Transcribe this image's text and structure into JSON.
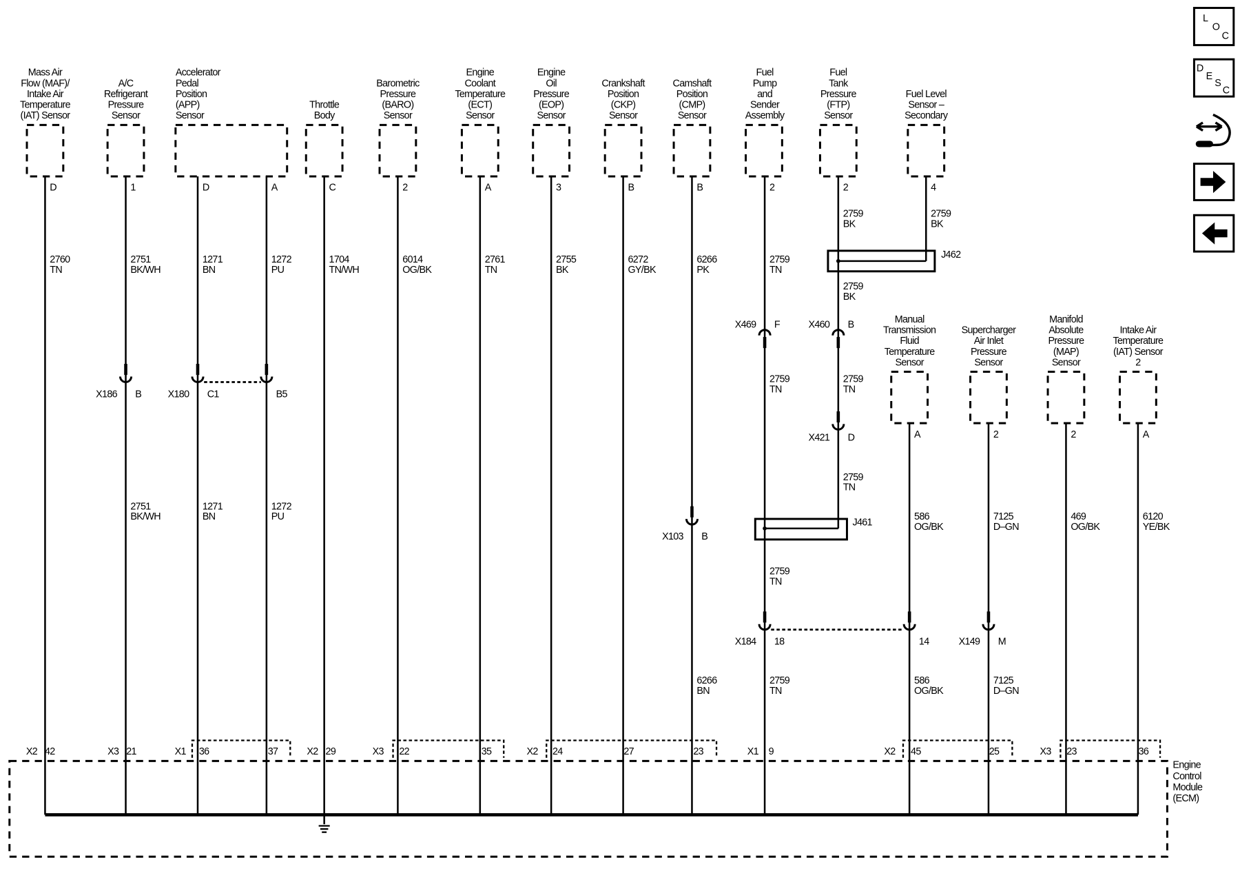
{
  "components": [
    {
      "label": [
        "Mass Air",
        "Flow (MAF)/",
        "Intake Air",
        "Temperature",
        "(IAT) Sensor"
      ],
      "pins": [
        "D"
      ]
    },
    {
      "label": [
        "A/C",
        "Refrigerant",
        "Pressure",
        "Sensor"
      ],
      "pins": [
        "1"
      ]
    },
    {
      "label": [
        "Accelerator",
        "Pedal",
        "Position",
        "(APP)",
        "Sensor"
      ],
      "pins": [
        "D",
        "A"
      ]
    },
    {
      "label": [
        "Throttle",
        "Body"
      ],
      "pins": [
        "C"
      ]
    },
    {
      "label": [
        "Barometric",
        "Pressure",
        "(BARO)",
        "Sensor"
      ],
      "pins": [
        "2"
      ]
    },
    {
      "label": [
        "Engine",
        "Coolant",
        "Temperature",
        "(ECT)",
        "Sensor"
      ],
      "pins": [
        "A"
      ]
    },
    {
      "label": [
        "Engine",
        "Oil",
        "Pressure",
        "(EOP)",
        "Sensor"
      ],
      "pins": [
        "3"
      ]
    },
    {
      "label": [
        "Crankshaft",
        "Position",
        "(CKP)",
        "Sensor"
      ],
      "pins": [
        "B"
      ]
    },
    {
      "label": [
        "Camshaft",
        "Position",
        "(CMP)",
        "Sensor"
      ],
      "pins": [
        "B"
      ]
    },
    {
      "label": [
        "Fuel",
        "Pump",
        "and",
        "Sender",
        "Assembly"
      ],
      "pins": [
        "2"
      ]
    },
    {
      "label": [
        "Fuel",
        "Tank",
        "Pressure",
        "(FTP)",
        "Sensor"
      ],
      "pins": [
        "2"
      ]
    },
    {
      "label": [
        "Fuel Level",
        "Sensor –",
        "Secondary"
      ],
      "pins": [
        "4"
      ]
    },
    {
      "label": [
        "Manual",
        "Transmission",
        "Fluid",
        "Temperature",
        "Sensor"
      ],
      "pins": [
        "A"
      ]
    },
    {
      "label": [
        "Supercharger",
        "Air Inlet",
        "Pressure",
        "Sensor"
      ],
      "pins": [
        "2"
      ]
    },
    {
      "label": [
        "Manifold",
        "Absolute",
        "Pressure",
        "(MAP)",
        "Sensor"
      ],
      "pins": [
        "2"
      ]
    },
    {
      "label": [
        "Intake Air",
        "Temperature",
        "(IAT) Sensor",
        "2"
      ],
      "pins": [
        "A"
      ]
    }
  ],
  "wire_labels": [
    {
      "circuit": "2760",
      "color": "TN"
    },
    {
      "circuit": "2751",
      "color": "BK/WH"
    },
    {
      "circuit": "2751",
      "color": "BK/WH"
    },
    {
      "circuit": "1271",
      "color": "BN"
    },
    {
      "circuit": "1271",
      "color": "BN"
    },
    {
      "circuit": "1272",
      "color": "PU"
    },
    {
      "circuit": "1272",
      "color": "PU"
    },
    {
      "circuit": "1704",
      "color": "TN/WH"
    },
    {
      "circuit": "6014",
      "color": "OG/BK"
    },
    {
      "circuit": "2761",
      "color": "TN"
    },
    {
      "circuit": "2755",
      "color": "BK"
    },
    {
      "circuit": "6272",
      "color": "GY/BK"
    },
    {
      "circuit": "6266",
      "color": "PK"
    },
    {
      "circuit": "6266",
      "color": "BN"
    },
    {
      "circuit": "2759",
      "color": "TN"
    },
    {
      "circuit": "2759",
      "color": "TN"
    },
    {
      "circuit": "2759",
      "color": "TN"
    },
    {
      "circuit": "2759",
      "color": "TN"
    },
    {
      "circuit": "2759",
      "color": "BK"
    },
    {
      "circuit": "2759",
      "color": "BK"
    },
    {
      "circuit": "2759",
      "color": "TN"
    },
    {
      "circuit": "2759",
      "color": "TN"
    },
    {
      "circuit": "2759",
      "color": "BK"
    },
    {
      "circuit": "586",
      "color": "OG/BK"
    },
    {
      "circuit": "586",
      "color": "OG/BK"
    },
    {
      "circuit": "7125",
      "color": "D–GN"
    },
    {
      "circuit": "7125",
      "color": "D–GN"
    },
    {
      "circuit": "469",
      "color": "OG/BK"
    },
    {
      "circuit": "6120",
      "color": "YE/BK"
    }
  ],
  "inline_connectors": [
    {
      "name": "X186",
      "pin": "B"
    },
    {
      "name": "X180",
      "pin": "C1"
    },
    {
      "name": "",
      "pin": "B5"
    },
    {
      "name": "X469",
      "pin": "F"
    },
    {
      "name": "X460",
      "pin": "B"
    },
    {
      "name": "X421",
      "pin": "D"
    },
    {
      "name": "X103",
      "pin": "B"
    },
    {
      "name": "X184",
      "pin": "18"
    },
    {
      "name": "",
      "pin": "14"
    },
    {
      "name": "X149",
      "pin": "M"
    }
  ],
  "splices": [
    "J462",
    "J461"
  ],
  "ecm": {
    "label": [
      "Engine",
      "Control",
      "Module",
      "(ECM)"
    ],
    "pins": [
      {
        "conn": "X2",
        "pin": "42"
      },
      {
        "conn": "X3",
        "pin": "21"
      },
      {
        "conn": "X1",
        "pin": "36"
      },
      {
        "conn": "",
        "pin": "37"
      },
      {
        "conn": "X2",
        "pin": "29"
      },
      {
        "conn": "X3",
        "pin": "22"
      },
      {
        "conn": "",
        "pin": "35"
      },
      {
        "conn": "X2",
        "pin": "24"
      },
      {
        "conn": "",
        "pin": "27"
      },
      {
        "conn": "",
        "pin": "23"
      },
      {
        "conn": "X1",
        "pin": "9"
      },
      {
        "conn": "X2",
        "pin": "45"
      },
      {
        "conn": "",
        "pin": "25"
      },
      {
        "conn": "X3",
        "pin": "23"
      },
      {
        "conn": "",
        "pin": "36"
      }
    ]
  },
  "nav": {
    "loc": [
      "L",
      "O",
      "C"
    ],
    "desc": [
      "D",
      "E",
      "S",
      "C"
    ],
    "icons": [
      "loc-button",
      "desc-button",
      "connector-end-view-icon",
      "next-arrow-icon",
      "previous-arrow-icon"
    ]
  }
}
